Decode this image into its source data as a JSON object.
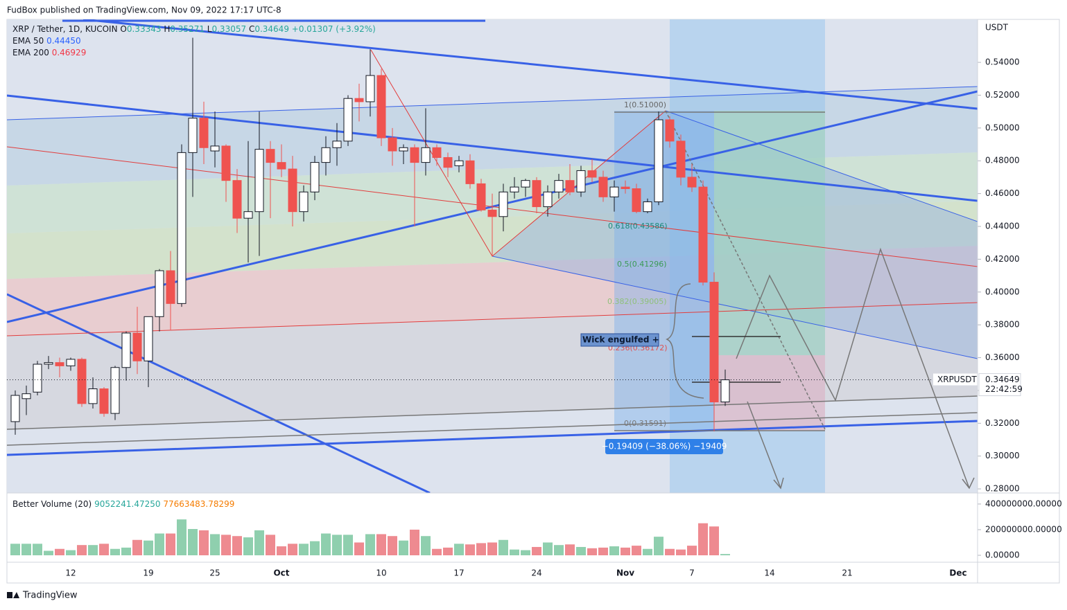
{
  "header": "FudBox published on TradingView.com, Nov 09, 2022 17:17 UTC-8",
  "footer": "TradingView",
  "annotations": {
    "wick_note": "Wick engulfed +",
    "measure": "−0.19409 (−38.06%) −19409",
    "fib_labels": [
      "1(0.51000)",
      "0.618(0.43586)",
      "0.5(0.41296)",
      "0.382(0.39005)",
      "0.236(0.36172)",
      "0(0.31591)"
    ]
  },
  "chart_data": [
    {
      "type": "candlestick",
      "title": "XRP / Tether, 1D, KUCOIN",
      "ohlc_legend": [
        "O",
        "0.33343",
        "H",
        "0.35271",
        "L",
        "0.33057",
        "C",
        "0.34649",
        "+0.01307 (+3.92%)"
      ],
      "indicators": [
        {
          "name": "EMA 50",
          "value": "0.44450",
          "color": "#2962ff"
        },
        {
          "name": "EMA 200",
          "value": "0.46929",
          "color": "#f23645"
        }
      ],
      "y_unit": "USDT",
      "symbol_tag": "XRPUSDT",
      "price_tag": "0.34649",
      "countdown": "22:42:59",
      "up_color": "#ffffff",
      "up_border": "#131722",
      "down_color": "#ef5350",
      "categories": [
        null,
        null,
        null,
        null,
        null,
        "12",
        null,
        null,
        null,
        null,
        null,
        null,
        "19",
        null,
        null,
        null,
        null,
        null,
        "25",
        null,
        null,
        null,
        null,
        null,
        "Oct",
        null,
        null,
        null,
        null,
        null,
        null,
        null,
        null,
        "10",
        null,
        null,
        null,
        null,
        null,
        null,
        "17",
        null,
        null,
        null,
        null,
        null,
        null,
        "24",
        null,
        null,
        null,
        null,
        null,
        null,
        null,
        "Nov",
        null,
        null,
        null,
        null,
        null,
        "7",
        null,
        null,
        null,
        null,
        null,
        null,
        "14",
        null,
        null,
        null,
        null,
        null,
        null,
        "21",
        null,
        null,
        null,
        null,
        null,
        null,
        null,
        null,
        null,
        "Dec",
        null
      ],
      "open": [
        0.321,
        0.335,
        0.339,
        0.356,
        0.357,
        0.355,
        0.359,
        0.332,
        0.341,
        0.326,
        0.354,
        0.375,
        0.358,
        0.385,
        0.413,
        0.393,
        0.485,
        0.506,
        0.486,
        0.489,
        0.468,
        0.445,
        0.449,
        0.487,
        0.479,
        0.475,
        0.449,
        0.461,
        0.479,
        0.488,
        0.492,
        0.518,
        0.516,
        0.532,
        0.494,
        0.486,
        0.488,
        0.479,
        0.488,
        0.482,
        0.477,
        0.48,
        0.466,
        0.45,
        0.446,
        0.461,
        0.464,
        0.468,
        0.452,
        0.461,
        0.468,
        0.461,
        0.474,
        0.47,
        0.458,
        0.464,
        0.463,
        0.449,
        0.455,
        0.505,
        0.492,
        0.47,
        0.464,
        0.406,
        0.333,
        null,
        null,
        null,
        null,
        null,
        null,
        null,
        null,
        null,
        null,
        null,
        null,
        null,
        null,
        null,
        null,
        null,
        null,
        null,
        null,
        null,
        null
      ],
      "high": [
        0.34,
        0.343,
        0.358,
        0.361,
        0.36,
        0.36,
        0.36,
        0.348,
        0.342,
        0.355,
        0.376,
        0.391,
        0.385,
        0.414,
        0.425,
        0.49,
        0.555,
        0.516,
        0.51,
        0.49,
        0.475,
        0.492,
        0.51,
        0.492,
        0.49,
        0.483,
        0.465,
        0.483,
        0.495,
        0.503,
        0.52,
        0.527,
        0.548,
        0.536,
        0.5,
        0.49,
        0.49,
        0.512,
        0.49,
        0.485,
        0.483,
        0.484,
        0.469,
        0.46,
        0.466,
        0.47,
        0.469,
        0.47,
        0.465,
        0.472,
        0.478,
        0.477,
        0.481,
        0.474,
        0.468,
        0.468,
        0.466,
        0.457,
        0.51,
        0.507,
        0.496,
        0.478,
        0.468,
        0.412,
        0.35271,
        null,
        null,
        null,
        null,
        null,
        null,
        null,
        null,
        null,
        null,
        null,
        null,
        null,
        null,
        null,
        null,
        null,
        null,
        null,
        null,
        null,
        null
      ],
      "low": [
        0.313,
        0.325,
        0.337,
        0.353,
        0.348,
        0.352,
        0.33,
        0.329,
        0.324,
        0.322,
        0.346,
        0.35,
        0.342,
        0.376,
        0.377,
        0.391,
        0.458,
        0.478,
        0.476,
        0.455,
        0.436,
        0.418,
        0.422,
        0.445,
        0.47,
        0.44,
        0.443,
        0.456,
        0.471,
        0.477,
        0.489,
        0.504,
        0.507,
        0.489,
        0.477,
        0.478,
        0.44,
        0.471,
        0.477,
        0.47,
        0.473,
        0.463,
        0.449,
        0.422,
        0.437,
        0.457,
        0.458,
        0.448,
        0.446,
        0.457,
        0.459,
        0.458,
        0.467,
        0.455,
        0.449,
        0.46,
        0.448,
        0.448,
        0.453,
        0.488,
        0.465,
        0.461,
        0.404,
        0.315,
        0.33057,
        null,
        null,
        null,
        null,
        null,
        null,
        null,
        null,
        null,
        null,
        null,
        null,
        null,
        null,
        null,
        null,
        null,
        null,
        null,
        null,
        null,
        null
      ],
      "close": [
        0.337,
        0.338,
        0.356,
        0.357,
        0.355,
        0.359,
        0.332,
        0.341,
        0.326,
        0.354,
        0.375,
        0.358,
        0.385,
        0.413,
        0.393,
        0.485,
        0.506,
        0.488,
        0.489,
        0.468,
        0.445,
        0.449,
        0.487,
        0.479,
        0.475,
        0.449,
        0.461,
        0.479,
        0.488,
        0.492,
        0.518,
        0.516,
        0.532,
        0.494,
        0.486,
        0.488,
        0.479,
        0.488,
        0.482,
        0.476,
        0.48,
        0.466,
        0.45,
        0.446,
        0.461,
        0.464,
        0.468,
        0.452,
        0.461,
        0.468,
        0.461,
        0.474,
        0.47,
        0.458,
        0.464,
        0.463,
        0.449,
        0.455,
        0.505,
        0.492,
        0.47,
        0.464,
        0.406,
        0.333,
        0.34649,
        null,
        null,
        null,
        null,
        null,
        null,
        null,
        null,
        null,
        null,
        null,
        null,
        null,
        null,
        null,
        null,
        null,
        null,
        null,
        null,
        null,
        null
      ],
      "ylim": [
        0.2775,
        0.5662
      ],
      "yticks": [
        {
          "value": 0.54,
          "label": "0.54000"
        },
        {
          "value": 0.52,
          "label": "0.52000"
        },
        {
          "value": 0.5,
          "label": "0.50000"
        },
        {
          "value": 0.48,
          "label": "0.48000"
        },
        {
          "value": 0.46,
          "label": "0.46000"
        },
        {
          "value": 0.44,
          "label": "0.44000"
        },
        {
          "value": 0.42,
          "label": "0.42000"
        },
        {
          "value": 0.4,
          "label": "0.40000"
        },
        {
          "value": 0.38,
          "label": "0.38000"
        },
        {
          "value": 0.36,
          "label": "0.36000"
        },
        {
          "value": 0.34,
          "label": "0.34000"
        },
        {
          "value": 0.32,
          "label": "0.32000"
        },
        {
          "value": 0.3,
          "label": "0.30000"
        },
        {
          "value": 0.28,
          "label": "0.28000"
        }
      ]
    },
    {
      "type": "bar",
      "title": "Better Volume (20)",
      "legend_values": [
        "9052241.47250",
        "77663483.78299"
      ],
      "up_color": "#8fcfae",
      "down_color": "#ee8a90",
      "values": [
        90000000,
        90000000,
        90000000,
        35000000,
        50000000,
        40000000,
        80000000,
        80000000,
        90000000,
        50000000,
        60000000,
        120000000,
        115000000,
        170000000,
        170000000,
        280000000,
        205000000,
        195000000,
        165000000,
        160000000,
        150000000,
        140000000,
        195000000,
        160000000,
        70000000,
        90000000,
        90000000,
        110000000,
        170000000,
        160000000,
        160000000,
        100000000,
        165000000,
        165000000,
        150000000,
        115000000,
        200000000,
        150000000,
        50000000,
        60000000,
        90000000,
        85000000,
        95000000,
        100000000,
        120000000,
        45000000,
        40000000,
        65000000,
        100000000,
        80000000,
        85000000,
        65000000,
        55000000,
        60000000,
        70000000,
        60000000,
        75000000,
        50000000,
        145000000,
        50000000,
        45000000,
        75000000,
        250000000,
        225000000,
        10000000,
        null,
        null,
        null,
        null,
        null,
        null,
        null,
        null,
        null,
        null,
        null,
        null,
        null,
        null,
        null,
        null,
        null,
        null,
        null,
        null,
        null,
        null
      ],
      "ylim": [
        -54000000,
        486000000
      ],
      "yticks": [
        {
          "value": 400000000,
          "label": "400000000.00000"
        },
        {
          "value": 200000000,
          "label": "200000000.00000"
        },
        {
          "value": 0,
          "label": "0.00000"
        }
      ]
    }
  ]
}
